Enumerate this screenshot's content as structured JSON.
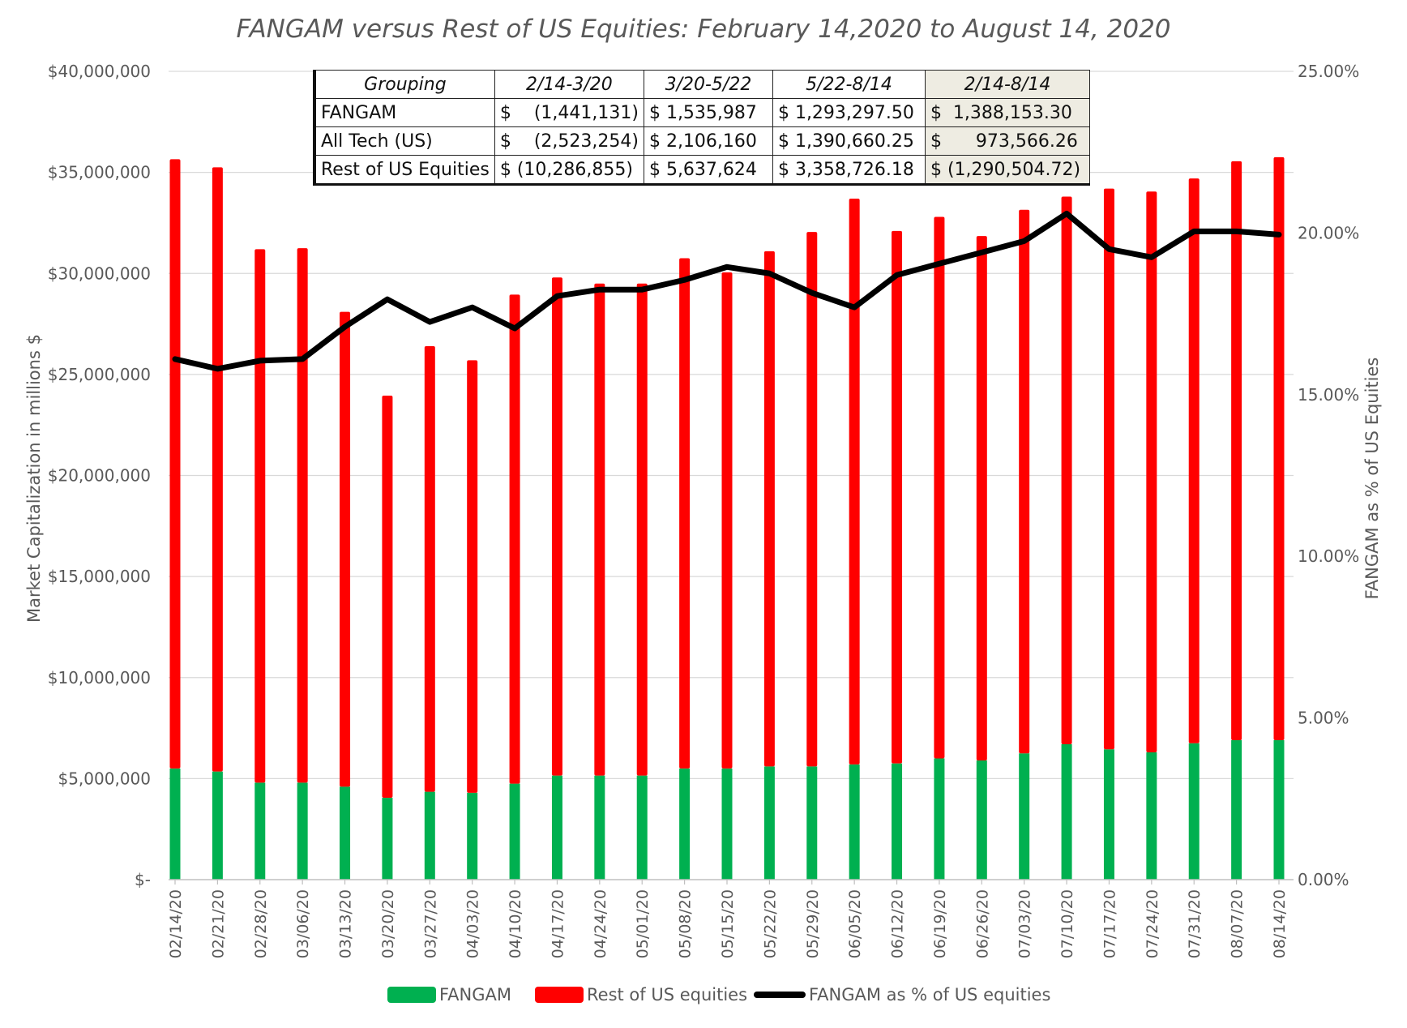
{
  "chart_data": {
    "type": "bar",
    "title": "FANGAM versus Rest of US Equities: February 14,2020  to August 14, 2020",
    "ylabel": "Market Capitalization in millions $",
    "y2label": "FANGAM as % of US Equities",
    "ylim": [
      0,
      40000000
    ],
    "y2lim": [
      0,
      0.25
    ],
    "y_ticks": [
      "$-",
      "$5,000,000",
      "$10,000,000",
      "$15,000,000",
      "$20,000,000",
      "$25,000,000",
      "$30,000,000",
      "$35,000,000",
      "$40,000,000"
    ],
    "y2_ticks": [
      "0.00%",
      "5.00%",
      "10.00%",
      "15.00%",
      "20.00%",
      "25.00%"
    ],
    "grid": true,
    "stacked": true,
    "legend_position": "bottom",
    "categories": [
      "02/14/20",
      "02/21/20",
      "02/28/20",
      "03/06/20",
      "03/13/20",
      "03/20/20",
      "03/27/20",
      "04/03/20",
      "04/10/20",
      "04/17/20",
      "04/24/20",
      "05/01/20",
      "05/08/20",
      "05/15/20",
      "05/22/20",
      "05/29/20",
      "06/05/20",
      "06/12/20",
      "06/19/20",
      "06/26/20",
      "07/03/20",
      "07/10/20",
      "07/17/20",
      "07/24/20",
      "07/31/20",
      "08/07/20",
      "08/14/20"
    ],
    "series": [
      {
        "name": "FANGAM",
        "type": "bar",
        "color": "#00b050",
        "values": [
          5500000,
          5350000,
          4800000,
          4800000,
          4600000,
          4050000,
          4350000,
          4300000,
          4750000,
          5150000,
          5150000,
          5150000,
          5500000,
          5500000,
          5600000,
          5600000,
          5700000,
          5750000,
          6000000,
          5900000,
          6250000,
          6700000,
          6450000,
          6300000,
          6750000,
          6900000,
          6900000
        ]
      },
      {
        "name": "Rest of US equities",
        "type": "bar",
        "color": "#ff0000",
        "values": [
          30150000,
          29900000,
          26400000,
          26450000,
          23500000,
          19900000,
          22050000,
          21400000,
          24200000,
          24650000,
          24350000,
          24350000,
          25250000,
          24550000,
          25500000,
          26450000,
          28000000,
          26350000,
          26800000,
          25950000,
          26900000,
          27100000,
          27750000,
          27750000,
          27950000,
          28650000,
          28850000
        ]
      },
      {
        "name": "FANGAM as % of US equities",
        "type": "line",
        "axis": "right",
        "color": "#000000",
        "values": [
          0.161,
          0.158,
          0.1605,
          0.161,
          0.171,
          0.1795,
          0.1725,
          0.177,
          0.1705,
          0.1805,
          0.1825,
          0.1825,
          0.1855,
          0.1895,
          0.1875,
          0.1815,
          0.177,
          0.187,
          0.1905,
          0.194,
          0.1975,
          0.206,
          0.195,
          0.1925,
          0.2005,
          0.2005,
          0.1995
        ]
      }
    ]
  },
  "summary_table": {
    "headers": [
      "Grouping",
      "2/14-3/20",
      "3/20-5/22",
      "5/22-8/14",
      "2/14-8/14"
    ],
    "rows": [
      [
        "FANGAM",
        "$    (1,441,131)",
        "$ 1,535,987",
        "$ 1,293,297.50",
        "$  1,388,153.30"
      ],
      [
        "All Tech (US)",
        "$    (2,523,254)",
        "$ 2,106,160",
        "$ 1,390,660.25",
        "$      973,566.26"
      ],
      [
        "Rest of US Equities",
        "$ (10,286,855)",
        "$ 5,637,624",
        "$ 3,358,726.18",
        "$ (1,290,504.72)"
      ]
    ]
  }
}
